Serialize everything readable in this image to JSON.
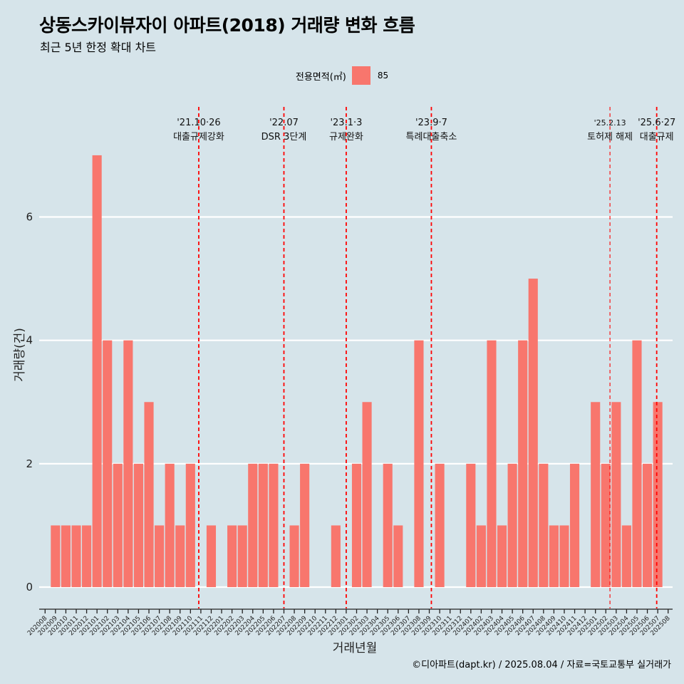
{
  "title": "상동스카이뷰자이 아파트(2018) 거래량 변화 흐름",
  "subtitle": "최근 5년 한정 확대 차트",
  "caption": "©디아파트(dapt.kr) / 2025.08.04 / 자료=국토교통부 실거래가",
  "legend": {
    "title": "전용면적(㎡)",
    "label": "85",
    "color": "#f8766d"
  },
  "colors": {
    "background": "#d6e4ea",
    "bar": "#f8766d",
    "grid": "#ffffff",
    "event_line": "#ff0000"
  },
  "chart_data": {
    "type": "bar",
    "title": "상동스카이뷰자이 아파트(2018) 거래량 변화 흐름",
    "subtitle": "최근 5년 한정 확대 차트",
    "xlabel": "거래년월",
    "ylabel": "거래량(건)",
    "ylim": [
      -0.3,
      7.9
    ],
    "yticks": [
      0,
      2,
      4,
      6
    ],
    "grid": true,
    "legend_position": "top",
    "categories": [
      "202008",
      "202009",
      "202010",
      "202011",
      "202012",
      "202101",
      "202102",
      "202103",
      "202104",
      "202105",
      "202106",
      "202107",
      "202108",
      "202109",
      "202110",
      "202111",
      "202112",
      "202201",
      "202202",
      "202203",
      "202204",
      "202205",
      "202206",
      "202207",
      "202208",
      "202209",
      "202210",
      "202211",
      "202212",
      "202301",
      "202302",
      "202303",
      "202304",
      "202305",
      "202306",
      "202307",
      "202308",
      "202309",
      "202310",
      "202311",
      "202312",
      "202401",
      "202402",
      "202403",
      "202404",
      "202405",
      "202406",
      "202407",
      "202408",
      "202409",
      "202410",
      "202411",
      "202412",
      "202501",
      "202502",
      "202503",
      "202504",
      "202505",
      "202506",
      "202507",
      "202508"
    ],
    "series": [
      {
        "name": "85",
        "values": [
          0,
          1,
          1,
          1,
          1,
          7,
          4,
          2,
          4,
          2,
          3,
          1,
          2,
          1,
          2,
          0,
          1,
          0,
          1,
          1,
          2,
          2,
          2,
          0,
          1,
          2,
          0,
          0,
          1,
          0,
          2,
          3,
          0,
          2,
          1,
          0,
          4,
          0,
          2,
          0,
          0,
          2,
          1,
          4,
          1,
          2,
          4,
          5,
          2,
          1,
          1,
          2,
          0,
          3,
          2,
          3,
          1,
          4,
          2,
          3,
          0
        ]
      }
    ],
    "events": [
      {
        "x": 202110.8,
        "label_top": "'21.10·26",
        "label_bottom": "대출규제강화",
        "style": "thick"
      },
      {
        "x": 202207.0,
        "label_top": "'22.07",
        "label_bottom": "DSR 3단계",
        "style": "thick"
      },
      {
        "x": 202301.0,
        "label_top": "'23.1·3",
        "label_bottom": "규제완화",
        "style": "thick"
      },
      {
        "x": 202309.2,
        "label_top": "'23.9·7",
        "label_bottom": "특례대출축소",
        "style": "thick"
      },
      {
        "x": 202502.4,
        "label_top": "'25.2.13",
        "label_bottom": "토허제 해제",
        "style": "thin"
      },
      {
        "x": 202506.9,
        "label_top": "'25.6·27",
        "label_bottom": "대출규제",
        "style": "thick"
      }
    ]
  }
}
